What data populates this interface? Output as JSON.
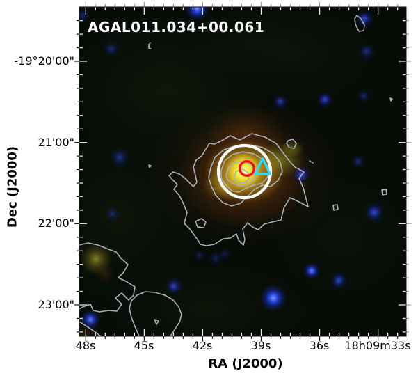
{
  "figure": {
    "title": "AGAL011.034+00.061",
    "axes": {
      "xlabel": "RA (J2000)",
      "ylabel": "Dec (J2000)",
      "x_tick_labels": [
        "48s",
        "45s",
        "42s",
        "39s",
        "36s",
        "18h09m33s"
      ],
      "y_tick_labels": [
        "-19°20'00\"",
        "21'00\"",
        "22'00\"",
        "23'00\""
      ]
    },
    "colors": {
      "figure_background": "#ffffff",
      "image_background": "#070c07",
      "aperture_circle": "#ffffff",
      "red_circle_marker": "#ee1016",
      "cyan_triangle_marker": "#35d9f5",
      "contour_gray": "#a9b0b8",
      "star_blue": "#2c4cf2",
      "clump_yellow": "#f6e93a"
    }
  },
  "chart_data": {
    "type": "heatmap",
    "title": "AGAL011.034+00.061",
    "xlabel": "RA (J2000)",
    "ylabel": "Dec (J2000)",
    "x_ticks": [
      "48s",
      "45s",
      "42s",
      "39s",
      "36s",
      "18h09m33s"
    ],
    "y_ticks": [
      "-19°20'00\"",
      "21'00\"",
      "22'00\"",
      "23'00\""
    ],
    "x_axis_range": "RA 18h09m48s (left) to 18h09m33s (right), major ticks every 3s",
    "y_axis_range": "Dec -19°20'00\" to -19°23'00\", major ticks every 1 arcmin",
    "content": "Three-color infrared composite of dense clump AGAL011.034+00.061: bright yellow-orange extended clump at image center over a dark green-black background sprinkled with blue point sources; gray intensity contours outline the central clump (5 nested levels) plus a detached irregular contour complex toward the lower left and small islands elsewhere.",
    "features": [
      {
        "name": "central-clump",
        "approx_ra": "18h09m39.9s",
        "approx_dec": "-19°21'21\"",
        "appearance": "bright yellow core with red-brown halo"
      },
      {
        "name": "white-aperture-circle",
        "shape": "circle",
        "color": "#ffffff",
        "approx_ra": "18h09m39.9s",
        "approx_dec": "-19°21'22\"",
        "radius_arcsec": 19
      },
      {
        "name": "red-circle-marker",
        "shape": "open circle",
        "color": "#ee1016",
        "approx_ra": "18h09m39.7s",
        "approx_dec": "-19°21'19\""
      },
      {
        "name": "cyan-triangle-marker",
        "shape": "open triangle",
        "color": "#35d9f5",
        "approx_ra": "18h09m38.9s",
        "approx_dec": "-19°21'18\""
      },
      {
        "name": "contours",
        "color": "#a9b0b8",
        "levels": 5,
        "note": "nested around clump; detached lobes at lower left and small islands top-right and right"
      },
      {
        "name": "blue-stars",
        "color": "#2c4cf2",
        "count_approx": 20,
        "note": "brightest near bottom center"
      }
    ]
  }
}
